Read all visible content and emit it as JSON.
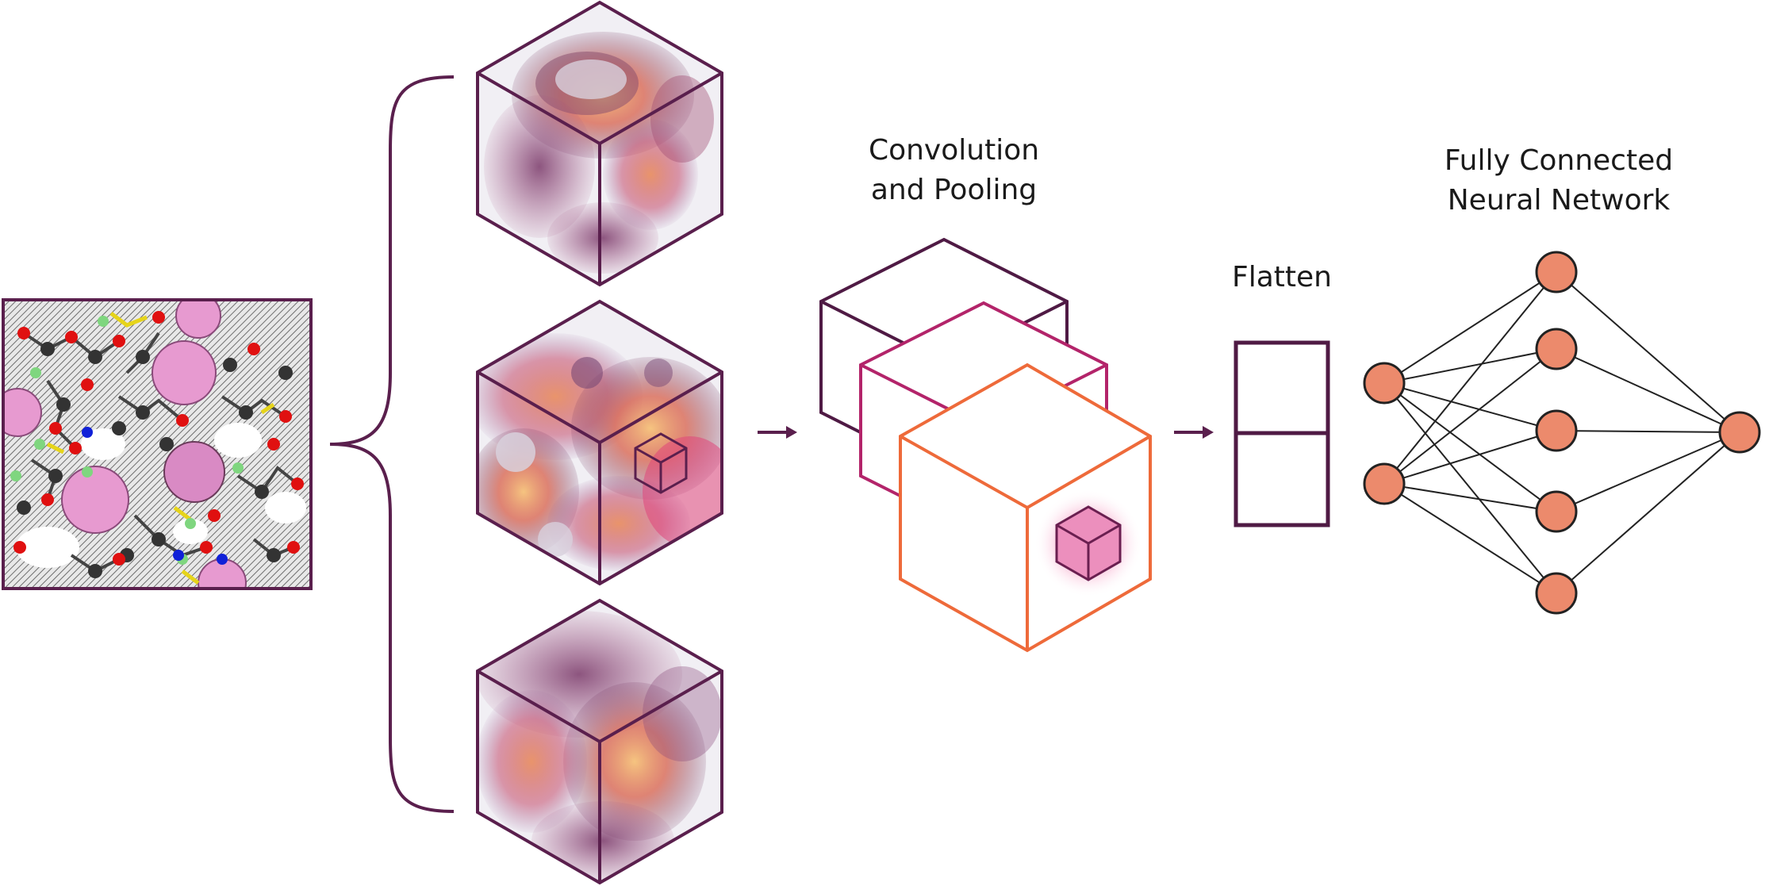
{
  "labels": {
    "conv_line1": "Convolution",
    "conv_line2": "and Pooling",
    "flatten": "Flatten",
    "fc_line1": "Fully Connected",
    "fc_line2": "Neural Network"
  },
  "colors": {
    "frame": "#5a1f4d",
    "conv_back": "#4f1a44",
    "conv_mid": "#b3246a",
    "conv_front": "#ee6a3a",
    "node_fill": "#ec8a6c",
    "node_stroke": "#222222",
    "highlight": "#f07fb2"
  }
}
